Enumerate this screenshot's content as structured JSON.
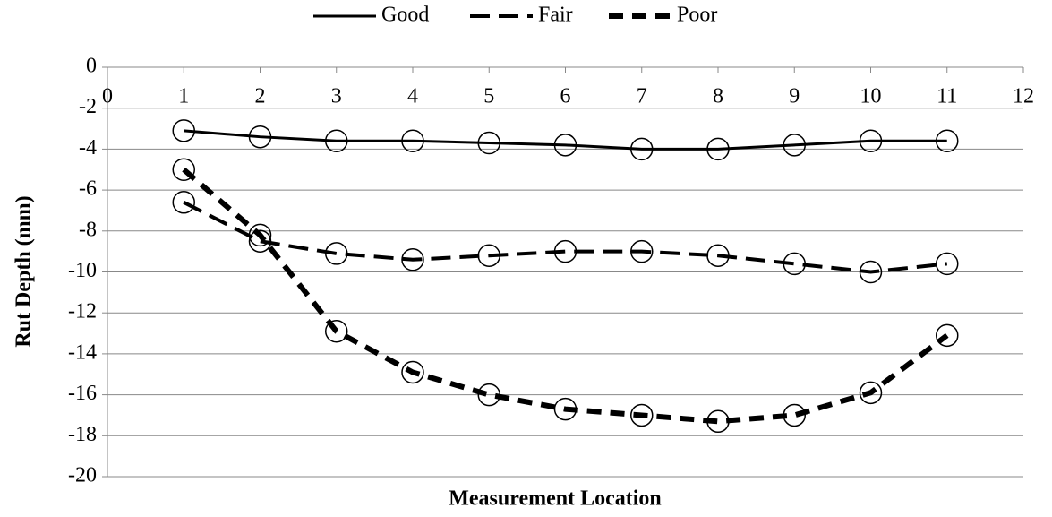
{
  "chart_data": {
    "type": "line",
    "x_label": "Measurement Location",
    "y_label": "Rut Depth (mm)",
    "x": [
      1,
      2,
      3,
      4,
      5,
      6,
      7,
      8,
      9,
      10,
      11
    ],
    "series": [
      {
        "name": "Good",
        "color": "#000000",
        "dash": "solid",
        "values": [
          -3.1,
          -3.4,
          -3.6,
          -3.6,
          -3.7,
          -3.8,
          -4.0,
          -4.0,
          -3.8,
          -3.6,
          -3.6
        ]
      },
      {
        "name": "Fair",
        "color": "#000000",
        "dash": "long-dash",
        "values": [
          -6.6,
          -8.5,
          -9.1,
          -9.4,
          -9.2,
          -9.0,
          -9.0,
          -9.2,
          -9.6,
          -10.0,
          -9.6
        ]
      },
      {
        "name": "Poor",
        "color": "#000000",
        "dash": "heavy-dash",
        "values": [
          -5.0,
          -8.2,
          -12.9,
          -14.9,
          -16.0,
          -16.7,
          -17.0,
          -17.3,
          -17.0,
          -15.9,
          -13.1
        ]
      }
    ],
    "xlim": [
      0,
      12
    ],
    "xticks": [
      0,
      1,
      2,
      3,
      4,
      5,
      6,
      7,
      8,
      9,
      10,
      11,
      12
    ],
    "ylim": [
      -20,
      0
    ],
    "yticks": [
      -20,
      -18,
      -16,
      -14,
      -12,
      -10,
      -8,
      -6,
      -4,
      -2,
      0
    ],
    "grid": true,
    "legend": "top"
  }
}
